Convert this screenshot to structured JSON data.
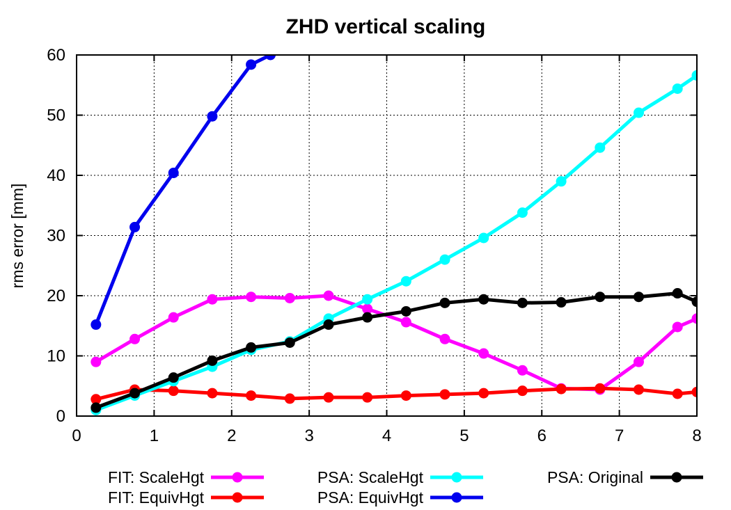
{
  "chart_data": {
    "type": "line",
    "title": "ZHD vertical scaling",
    "xlabel": "",
    "ylabel": "rms error [mm]",
    "xlim": [
      0,
      8
    ],
    "ylim": [
      0,
      60
    ],
    "xticks": [
      0,
      1,
      2,
      3,
      4,
      5,
      6,
      7,
      8
    ],
    "yticks": [
      0,
      10,
      20,
      30,
      40,
      50,
      60
    ],
    "grid": true,
    "legend_position": "bottom",
    "series": [
      {
        "name": "FIT: ScaleHgt",
        "color": "#ff00ff",
        "x": [
          0.25,
          0.75,
          1.25,
          1.75,
          2.25,
          2.75,
          3.25,
          3.75,
          4.25,
          4.75,
          5.25,
          5.75,
          6.25,
          6.75,
          7.25,
          7.75,
          8.0
        ],
        "y": [
          9.0,
          12.8,
          16.4,
          19.4,
          19.8,
          19.6,
          20.0,
          17.8,
          15.6,
          12.8,
          10.4,
          7.6,
          4.6,
          4.4,
          9.0,
          14.8,
          16.2
        ]
      },
      {
        "name": "FIT: EquivHgt",
        "color": "#ff0000",
        "x": [
          0.25,
          0.75,
          1.25,
          1.75,
          2.25,
          2.75,
          3.25,
          3.75,
          4.25,
          4.75,
          5.25,
          5.75,
          6.25,
          6.75,
          7.25,
          7.75,
          8.0
        ],
        "y": [
          2.8,
          4.4,
          4.2,
          3.8,
          3.4,
          2.9,
          3.1,
          3.1,
          3.4,
          3.6,
          3.8,
          4.2,
          4.5,
          4.6,
          4.4,
          3.7,
          4.0
        ]
      },
      {
        "name": "PSA: ScaleHgt",
        "color": "#00ffff",
        "x": [
          0.25,
          0.75,
          1.25,
          1.75,
          2.25,
          2.75,
          3.25,
          3.75,
          4.25,
          4.75,
          5.25,
          5.75,
          6.25,
          6.75,
          7.25,
          7.75,
          8.0
        ],
        "y": [
          1.0,
          3.4,
          5.8,
          8.2,
          11.0,
          12.4,
          16.2,
          19.4,
          22.4,
          26.0,
          29.6,
          33.8,
          39.0,
          44.6,
          50.4,
          54.4,
          56.6
        ]
      },
      {
        "name": "PSA: EquivHgt",
        "color": "#0000ee",
        "x": [
          0.25,
          0.75,
          1.25,
          1.75,
          2.25,
          2.5
        ],
        "y": [
          15.2,
          31.4,
          40.4,
          49.8,
          58.4,
          60.0
        ]
      },
      {
        "name": "PSA: Original",
        "color": "#000000",
        "x": [
          0.25,
          0.75,
          1.25,
          1.75,
          2.25,
          2.75,
          3.25,
          3.75,
          4.25,
          4.75,
          5.25,
          5.75,
          6.25,
          6.75,
          7.25,
          7.75,
          8.0
        ],
        "y": [
          1.4,
          3.8,
          6.4,
          9.2,
          11.4,
          12.2,
          15.2,
          16.4,
          17.4,
          18.8,
          19.4,
          18.8,
          18.9,
          19.8,
          19.8,
          20.4,
          19.0
        ]
      }
    ]
  }
}
